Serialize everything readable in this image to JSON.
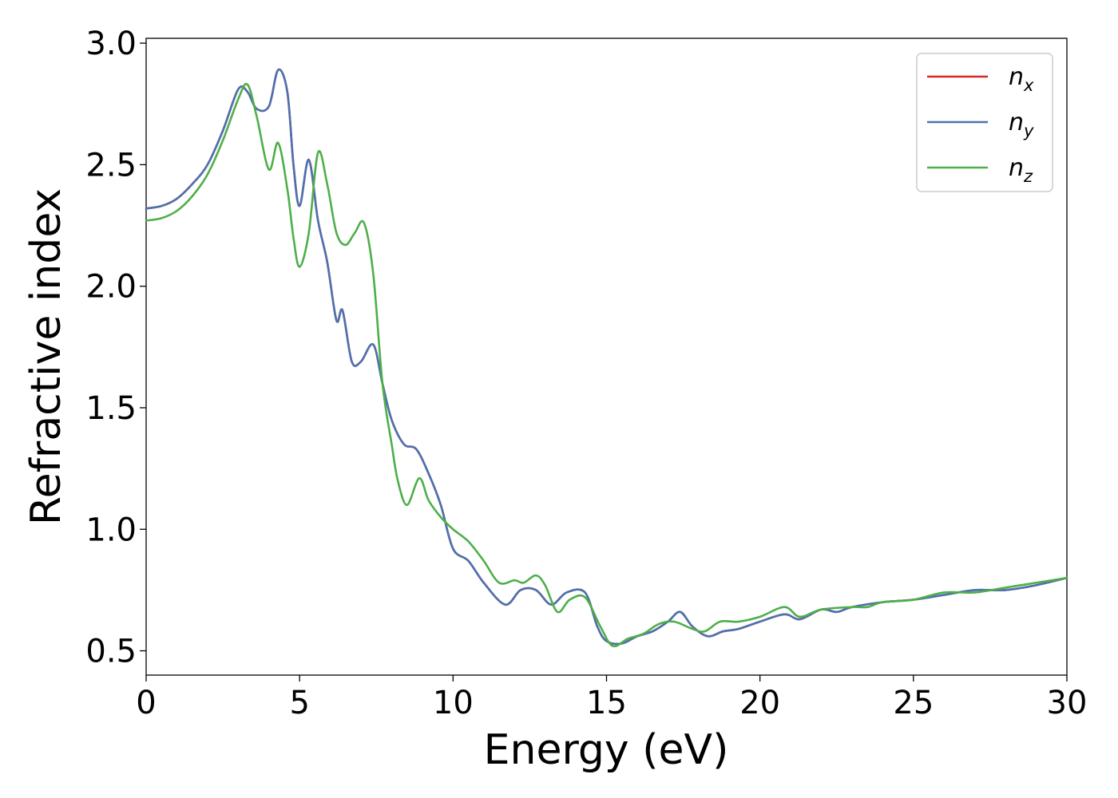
{
  "chart_data": {
    "type": "line",
    "xlabel": "Energy (eV)",
    "ylabel": "Refractive index",
    "xlim": [
      0,
      30
    ],
    "ylim": [
      0.4,
      3.02
    ],
    "xticks": [
      0,
      5,
      10,
      15,
      20,
      25,
      30
    ],
    "xtick_labels": [
      "0",
      "5",
      "10",
      "15",
      "20",
      "25",
      "30"
    ],
    "yticks": [
      0.5,
      1.0,
      1.5,
      2.0,
      2.5,
      3.0
    ],
    "ytick_labels": [
      "0.5",
      "1.0",
      "1.5",
      "2.0",
      "2.5",
      "3.0"
    ],
    "grid": false,
    "legend": {
      "placement": "top-right"
    },
    "series": [
      {
        "name": "n",
        "subscript": "x",
        "color": "#d62728",
        "x": [
          0,
          0.5,
          1.0,
          1.5,
          2.0,
          2.5,
          3.0,
          3.3,
          3.6,
          4.0,
          4.3,
          4.6,
          4.8,
          5.0,
          5.3,
          5.6,
          5.9,
          6.2,
          6.4,
          6.7,
          7.0,
          7.4,
          7.7,
          8.0,
          8.4,
          8.8,
          9.2,
          9.6,
          10.0,
          10.5,
          11.0,
          11.7,
          12.2,
          12.7,
          13.2,
          13.7,
          14.3,
          14.7,
          15.0,
          15.5,
          16.0,
          16.5,
          17.0,
          17.4,
          17.8,
          18.3,
          18.8,
          19.3,
          20.0,
          20.8,
          21.3,
          22.0,
          22.5,
          23.0,
          24.0,
          25.0,
          26.0,
          27.0,
          28.0,
          29.0,
          30.0
        ],
        "values": [
          2.32,
          2.33,
          2.36,
          2.42,
          2.5,
          2.64,
          2.81,
          2.8,
          2.73,
          2.74,
          2.89,
          2.8,
          2.5,
          2.33,
          2.52,
          2.27,
          2.1,
          1.86,
          1.9,
          1.69,
          1.69,
          1.76,
          1.6,
          1.45,
          1.35,
          1.33,
          1.23,
          1.1,
          0.92,
          0.87,
          0.78,
          0.69,
          0.75,
          0.75,
          0.69,
          0.74,
          0.74,
          0.6,
          0.54,
          0.53,
          0.56,
          0.58,
          0.62,
          0.66,
          0.6,
          0.56,
          0.58,
          0.59,
          0.62,
          0.65,
          0.63,
          0.67,
          0.66,
          0.68,
          0.7,
          0.71,
          0.73,
          0.75,
          0.75,
          0.77,
          0.8
        ]
      },
      {
        "name": "n",
        "subscript": "y",
        "color": "#4c72b0",
        "x": [
          0,
          0.5,
          1.0,
          1.5,
          2.0,
          2.5,
          3.0,
          3.3,
          3.6,
          4.0,
          4.3,
          4.6,
          4.8,
          5.0,
          5.3,
          5.6,
          5.9,
          6.2,
          6.4,
          6.7,
          7.0,
          7.4,
          7.7,
          8.0,
          8.4,
          8.8,
          9.2,
          9.6,
          10.0,
          10.5,
          11.0,
          11.7,
          12.2,
          12.7,
          13.2,
          13.7,
          14.3,
          14.7,
          15.0,
          15.5,
          16.0,
          16.5,
          17.0,
          17.4,
          17.8,
          18.3,
          18.8,
          19.3,
          20.0,
          20.8,
          21.3,
          22.0,
          22.5,
          23.0,
          24.0,
          25.0,
          26.0,
          27.0,
          28.0,
          29.0,
          30.0
        ],
        "values": [
          2.32,
          2.33,
          2.36,
          2.42,
          2.5,
          2.64,
          2.81,
          2.8,
          2.73,
          2.74,
          2.89,
          2.8,
          2.5,
          2.33,
          2.52,
          2.27,
          2.1,
          1.86,
          1.9,
          1.69,
          1.69,
          1.76,
          1.6,
          1.45,
          1.35,
          1.33,
          1.23,
          1.1,
          0.92,
          0.87,
          0.78,
          0.69,
          0.75,
          0.75,
          0.69,
          0.74,
          0.74,
          0.6,
          0.54,
          0.53,
          0.56,
          0.58,
          0.62,
          0.66,
          0.6,
          0.56,
          0.58,
          0.59,
          0.62,
          0.65,
          0.63,
          0.67,
          0.66,
          0.68,
          0.7,
          0.71,
          0.73,
          0.75,
          0.75,
          0.77,
          0.8
        ]
      },
      {
        "name": "n",
        "subscript": "z",
        "color": "#4daf4a",
        "x": [
          0,
          0.5,
          1.0,
          1.5,
          2.0,
          2.5,
          3.0,
          3.3,
          3.6,
          4.0,
          4.3,
          4.6,
          4.8,
          5.0,
          5.3,
          5.6,
          5.9,
          6.2,
          6.5,
          6.8,
          7.1,
          7.4,
          7.7,
          8.0,
          8.2,
          8.5,
          8.9,
          9.2,
          9.6,
          10.0,
          10.5,
          11.0,
          11.5,
          12.0,
          12.3,
          12.7,
          13.0,
          13.4,
          13.8,
          14.3,
          14.8,
          15.2,
          15.7,
          16.2,
          16.7,
          17.2,
          17.8,
          18.2,
          18.7,
          19.3,
          20.0,
          20.8,
          21.3,
          22.0,
          23.0,
          23.5,
          24.0,
          25.0,
          26.0,
          27.0,
          28.0,
          29.0,
          30.0
        ],
        "values": [
          2.27,
          2.28,
          2.31,
          2.37,
          2.46,
          2.6,
          2.77,
          2.83,
          2.7,
          2.48,
          2.59,
          2.4,
          2.2,
          2.08,
          2.22,
          2.55,
          2.42,
          2.22,
          2.17,
          2.22,
          2.26,
          2.05,
          1.6,
          1.35,
          1.2,
          1.1,
          1.21,
          1.12,
          1.05,
          1.0,
          0.95,
          0.87,
          0.78,
          0.79,
          0.78,
          0.81,
          0.77,
          0.66,
          0.71,
          0.72,
          0.6,
          0.52,
          0.55,
          0.57,
          0.61,
          0.62,
          0.59,
          0.58,
          0.62,
          0.62,
          0.64,
          0.68,
          0.64,
          0.67,
          0.68,
          0.68,
          0.7,
          0.71,
          0.74,
          0.74,
          0.76,
          0.78,
          0.8
        ]
      }
    ]
  }
}
